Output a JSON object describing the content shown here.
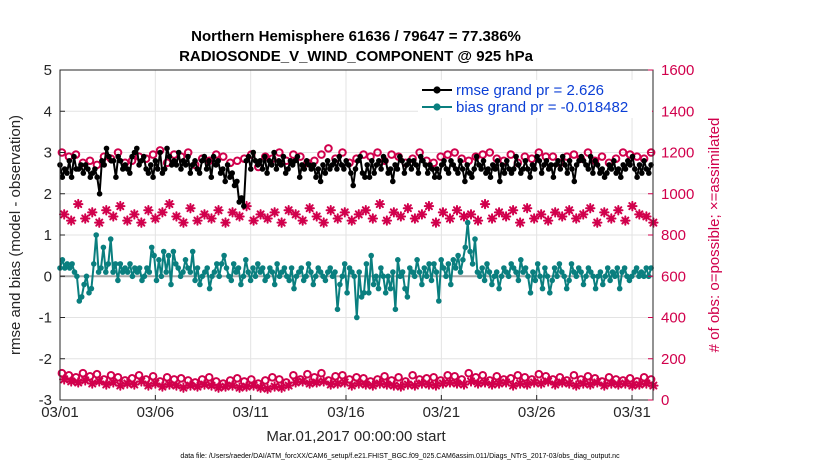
{
  "chart_data": {
    "type": "line",
    "title": "Northern Hemisphere 61636 / 79647 = 77.386%",
    "subtitle": "RADIOSONDE_V_WIND_COMPONENT @ 925 hPa",
    "xlabel": "Mar.01,2017 00:00:00 start",
    "ylabel": "rmse and bias (model - observation)",
    "ylabel_right": "# of obs: o=possible; ×=assimilated",
    "xlim": [
      0,
      31.1
    ],
    "ylim": [
      -3,
      5
    ],
    "ylim_right": [
      0,
      1600
    ],
    "yticks": [
      "-3",
      "-2",
      "-1",
      "0",
      "1",
      "2",
      "3",
      "4",
      "5"
    ],
    "yticks_right": [
      "0",
      "200",
      "400",
      "600",
      "800",
      "1000",
      "1200",
      "1400",
      "1600"
    ],
    "xtick_labels": [
      "03/01",
      "03/06",
      "03/11",
      "03/16",
      "03/21",
      "03/26",
      "03/31"
    ],
    "xtick_days": [
      0,
      5,
      10,
      15,
      20,
      25,
      30
    ],
    "grid": true,
    "legend_position": "top-right",
    "zero_line": 0,
    "series": [
      {
        "name": "rmse grand pr = 2.626",
        "color": "#000000",
        "marker": "filled-circle",
        "values": [
          2.7,
          2.4,
          2.6,
          2.5,
          2.8,
          2.4,
          2.9,
          2.6,
          2.6,
          2.7,
          2.5,
          2.7,
          2.6,
          2.4,
          2.5,
          2.6,
          2.4,
          2.0,
          2.8,
          2.7,
          3.1,
          2.9,
          2.8,
          2.8,
          2.4,
          2.9,
          2.8,
          2.6,
          2.7,
          2.6,
          2.5,
          2.9,
          3.0,
          3.1,
          2.7,
          2.8,
          2.9,
          2.6,
          2.5,
          2.7,
          2.4,
          2.8,
          2.6,
          3.0,
          2.5,
          2.6,
          3.1,
          2.9,
          2.7,
          2.8,
          2.7,
          3.0,
          2.6,
          2.8,
          2.7,
          2.9,
          2.5,
          2.7,
          2.8,
          2.6,
          2.5,
          2.8,
          2.9,
          2.6,
          2.8,
          2.4,
          2.9,
          2.7,
          2.8,
          2.5,
          2.6,
          2.3,
          2.7,
          2.4,
          2.5,
          2.2,
          2.3,
          1.8,
          1.9,
          1.7,
          2.8,
          2.9,
          2.6,
          3.0,
          2.8,
          2.7,
          2.8,
          2.6,
          2.9,
          2.5,
          2.8,
          2.7,
          3.0,
          2.6,
          2.8,
          2.7,
          2.9,
          2.5,
          2.6,
          2.8,
          2.7,
          2.8,
          2.9,
          2.4,
          2.7,
          2.6,
          2.8,
          2.7,
          2.6,
          2.7,
          2.4,
          2.6,
          2.3,
          2.7,
          2.5,
          2.8,
          2.6,
          2.7,
          2.8,
          2.6,
          2.9,
          2.7,
          2.6,
          2.8,
          2.7,
          2.5,
          2.2,
          2.6,
          2.8,
          2.9,
          2.5,
          2.4,
          2.7,
          2.4,
          2.8,
          2.5,
          2.7,
          2.8,
          2.6,
          2.9,
          2.8,
          2.5,
          2.6,
          2.3,
          2.7,
          2.6,
          2.9,
          2.8,
          2.5,
          2.7,
          2.8,
          2.6,
          2.8,
          2.7,
          2.5,
          2.9,
          2.8,
          2.7,
          2.5,
          2.7,
          2.6,
          2.4,
          2.6,
          2.4,
          2.7,
          2.8,
          2.6,
          2.5,
          2.8,
          2.7,
          2.6,
          2.5,
          2.8,
          2.6,
          2.3,
          2.7,
          2.5,
          2.4,
          2.6,
          2.9,
          2.7,
          2.6,
          2.8,
          2.5,
          2.6,
          2.4,
          2.7,
          2.6,
          2.8,
          2.3,
          2.7,
          2.5,
          2.8,
          2.6,
          2.5,
          2.6,
          2.9,
          2.7,
          2.5,
          2.6,
          2.8,
          2.6,
          2.4,
          2.7,
          2.6,
          2.9,
          2.8,
          2.5,
          2.7,
          2.8,
          2.6,
          2.7,
          2.4,
          2.7,
          2.8,
          2.6,
          2.9,
          2.7,
          2.5,
          2.8,
          2.6,
          2.3,
          2.7,
          2.8,
          2.9,
          2.8,
          2.7,
          2.6,
          2.9,
          2.5,
          2.8,
          2.7,
          2.5,
          2.6,
          2.4,
          2.5,
          2.7,
          2.6,
          2.8,
          2.5,
          2.6,
          2.4,
          2.7,
          2.6,
          2.8,
          2.7,
          2.9,
          2.6,
          2.4,
          2.7,
          2.5,
          2.8,
          2.6,
          2.5,
          2.7
        ]
      },
      {
        "name": "bias grand pr = -0.018482",
        "color": "#0a7f7f",
        "marker": "filled-circle",
        "values": [
          0.2,
          0.4,
          0.2,
          0.3,
          0.2,
          0.3,
          0.1,
          0.0,
          -0.6,
          -0.5,
          -0.2,
          0.0,
          -0.4,
          -0.3,
          0.3,
          1.0,
          0.1,
          0.2,
          0.7,
          0.1,
          0.3,
          0.9,
          0.1,
          0.3,
          -0.1,
          0.3,
          0.1,
          0.2,
          0.1,
          0.3,
          0.0,
          0.2,
          0.1,
          0.2,
          -0.1,
          0.0,
          0.2,
          0.1,
          0.7,
          0.5,
          -0.1,
          0.4,
          0.0,
          0.6,
          0.1,
          0.5,
          -0.2,
          0.6,
          0.3,
          0.2,
          0.0,
          0.1,
          0.4,
          0.2,
          0.1,
          0.6,
          -0.1,
          0.2,
          -0.2,
          0.0,
          0.1,
          0.2,
          -0.3,
          0.0,
          0.1,
          0.3,
          0.0,
          0.3,
          0.5,
          0.2,
          0.0,
          -0.1,
          0.3,
          0.1,
          0.2,
          -0.2,
          0.0,
          0.4,
          0.1,
          -0.1,
          0.2,
          0.0,
          0.3,
          0.1,
          0.2,
          -0.1,
          0.0,
          0.2,
          0.1,
          -0.2,
          0.3,
          0.0,
          0.1,
          0.2,
          0.0,
          -0.1,
          0.2,
          -0.3,
          0.0,
          0.1,
          0.2,
          -0.1,
          0.0,
          0.3,
          0.1,
          -0.2,
          0.0,
          0.2,
          0.1,
          0.0,
          -0.1,
          0.1,
          0.2,
          0.0,
          0.1,
          -0.8,
          -0.2,
          0.0,
          0.3,
          -0.4,
          0.2,
          0.1,
          0.0,
          -1.0,
          0.1,
          -0.5,
          -0.4,
          0.3,
          -0.4,
          0.5,
          -0.2,
          0.0,
          -0.3,
          0.2,
          0.0,
          -0.4,
          0.0,
          -0.3,
          0.1,
          -0.8,
          0.4,
          0.0,
          0.1,
          -0.3,
          -0.5,
          0.2,
          0.1,
          0.0,
          0.4,
          0.1,
          -0.2,
          0.2,
          0.0,
          0.3,
          -0.1,
          0.3,
          0.1,
          -0.6,
          0.4,
          0.2,
          0.0,
          0.3,
          -0.2,
          0.4,
          0.2,
          0.5,
          0.1,
          0.4,
          0.7,
          1.3,
          0.6,
          0.3,
          0.9,
          0.1,
          0.0,
          0.2,
          -0.1,
          0.3,
          0.1,
          -0.2,
          0.0,
          0.1,
          -0.3,
          0.0,
          0.2,
          0.1,
          0.0,
          0.3,
          0.2,
          0.1,
          -0.1,
          0.4,
          0.1,
          0.2,
          0.0,
          -0.4,
          0.1,
          -0.1,
          0.3,
          0.0,
          -0.3,
          0.2,
          0.0,
          -0.4,
          -0.1,
          0.2,
          0.0,
          0.3,
          0.1,
          0.0,
          -0.3,
          -0.1,
          0.3,
          0.1,
          0.0,
          0.2,
          0.1,
          -0.2,
          0.0,
          0.2,
          0.1,
          0.0,
          -0.3,
          0.0,
          0.1,
          -0.2,
          0.0,
          0.2,
          -0.1,
          0.1,
          0.0,
          0.2,
          -0.3,
          0.1,
          0.2,
          0.0,
          -0.1,
          0.0,
          0.1,
          0.2,
          0.0,
          0.1,
          0.0,
          0.2,
          0.0,
          0.2
        ]
      },
      {
        "name": "# of obs possible (upper)",
        "axis": "right",
        "color": "#d1004c",
        "marker": "open-circle",
        "values": [
          1200,
          1180,
          1190,
          1150,
          1160,
          1140,
          1180,
          1170,
          1200,
          1150,
          1160,
          1180,
          1170,
          1190,
          1210,
          1150,
          1190,
          1180,
          1200,
          1140,
          1170,
          1160,
          1190,
          1180,
          1150,
          1160,
          1170,
          1190,
          1130,
          1180,
          1170,
          1200,
          1160,
          1190,
          1180,
          1150,
          1160,
          1190,
          1220,
          1170,
          1200,
          1150,
          1170,
          1190,
          1180,
          1200,
          1160,
          1190,
          1180,
          1150,
          1170,
          1200,
          1160,
          1150,
          1180,
          1190,
          1200,
          1170,
          1160,
          1180,
          1190,
          1200,
          1170,
          1160,
          1190,
          1150,
          1180,
          1170,
          1200,
          1180,
          1180,
          1150,
          1180,
          1190,
          1170,
          1200,
          1160,
          1180,
          1150,
          1170,
          1200,
          1190,
          1180,
          1170,
          1200
        ]
      },
      {
        "name": "# of obs assimilated (upper)",
        "axis": "right",
        "color": "#d1004c",
        "marker": "star",
        "values": [
          900,
          870,
          950,
          880,
          910,
          860,
          920,
          890,
          940,
          870,
          900,
          860,
          920,
          880,
          910,
          950,
          890,
          860,
          930,
          870,
          900,
          880,
          920,
          860,
          910,
          890,
          940,
          870,
          900,
          880,
          910,
          860,
          920,
          900,
          870,
          930,
          890,
          860,
          920,
          880,
          910,
          870,
          900,
          920,
          880,
          950,
          870,
          910,
          890,
          930,
          880,
          900,
          940,
          860,
          910,
          880,
          920,
          890,
          900,
          870,
          950,
          880,
          910,
          890,
          920,
          860,
          930,
          880,
          900,
          870,
          910,
          890,
          920,
          880,
          900,
          930,
          860,
          910,
          880,
          920,
          870,
          940,
          900,
          890,
          860
        ]
      },
      {
        "name": "# of obs possible (lower)",
        "axis": "right",
        "color": "#d1004c",
        "marker": "open-circle",
        "values": [
          130,
          120,
          110,
          130,
          115,
          125,
          100,
          120,
          110,
          95,
          105,
          120,
          100,
          115,
          90,
          110,
          100,
          105,
          95,
          85,
          100,
          110,
          90,
          80,
          95,
          105,
          90,
          100,
          80,
          95,
          110,
          100,
          85,
          120,
          100,
          125,
          110,
          130,
          95,
          115,
          120,
          100,
          110,
          105,
          90,
          100,
          115,
          95,
          110,
          90,
          120,
          100,
          105,
          110,
          95,
          120,
          115,
          100,
          130,
          110,
          120,
          95,
          115,
          100,
          105,
          120,
          110,
          100,
          125,
          115,
          100,
          110,
          95,
          120,
          100,
          115,
          105,
          90,
          110,
          100,
          95,
          105,
          90,
          110,
          100
        ]
      },
      {
        "name": "# of obs assimilated (lower)",
        "axis": "right",
        "color": "#d1004c",
        "marker": "star",
        "values": [
          100,
          90,
          85,
          95,
          80,
          90,
          75,
          85,
          70,
          80,
          75,
          90,
          70,
          80,
          65,
          75,
          70,
          60,
          70,
          65,
          75,
          70,
          60,
          65,
          70,
          60,
          65,
          70,
          60,
          55,
          65,
          60,
          70,
          85,
          90,
          80,
          85,
          90,
          75,
          80,
          85,
          70,
          80,
          75,
          70,
          80,
          75,
          70,
          65,
          75,
          70,
          80,
          75,
          70,
          80,
          85,
          80,
          75,
          90,
          80,
          85,
          75,
          80,
          85,
          70,
          80,
          75,
          85,
          80,
          90,
          75,
          85,
          80,
          70,
          80,
          75,
          85,
          70,
          80,
          75,
          80,
          70,
          75,
          80,
          70
        ]
      }
    ],
    "footnote": "data file: /Users/raeder/DAI/ATM_forcXX/CAM6_setup/f.e21.FHIST_BGC.f09_025.CAM6assim.011/Diags_NTrS_2017-03/obs_diag_output.nc"
  }
}
